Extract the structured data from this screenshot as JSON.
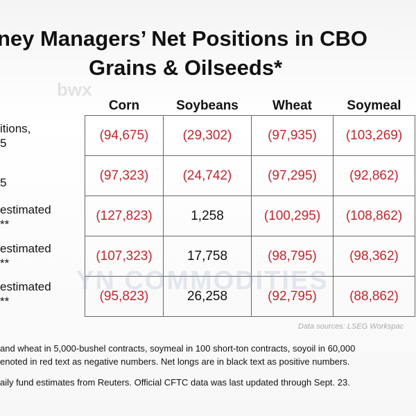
{
  "header": {
    "title_lines": [
      "ney Managers’ Net Positions in CBO",
      "Grains & Oilseeds*"
    ],
    "watermark": "bwx"
  },
  "table": {
    "columns": [
      "Corn",
      "Soybeans",
      "Wheat",
      "Soymeal"
    ],
    "row_labels": [
      [
        "itions,",
        "5"
      ],
      [
        "",
        "5"
      ],
      [
        "estimated",
        "**"
      ],
      [
        "estimated",
        "**"
      ],
      [
        "estimated",
        "**"
      ]
    ],
    "rows": [
      [
        "(94,675)",
        "(29,302)",
        "(97,935)",
        "(103,269)"
      ],
      [
        "(97,323)",
        "(24,742)",
        "(97,295)",
        "(92,862)"
      ],
      [
        "(127,823)",
        "1,258",
        "(100,295)",
        "(108,862)"
      ],
      [
        "(107,323)",
        "17,758",
        "(98,795)",
        "(98,362)"
      ],
      [
        "(95,823)",
        "26,258",
        "(92,795)",
        "(88,862)"
      ]
    ]
  },
  "overlay_watermark": "YN COMMODITIES",
  "source": "Data sources: LSEG Workspac",
  "footnotes": [
    "and wheat in 5,000-bushel contracts, soymeal in 100 short-ton contracts, soyoil in 60,000",
    "enoted in red text as negative numbers. Net longs are in black text as positive numbers.",
    "aily fund estimates from Reuters. Official CFTC data was last updated through Sept. 23."
  ]
}
